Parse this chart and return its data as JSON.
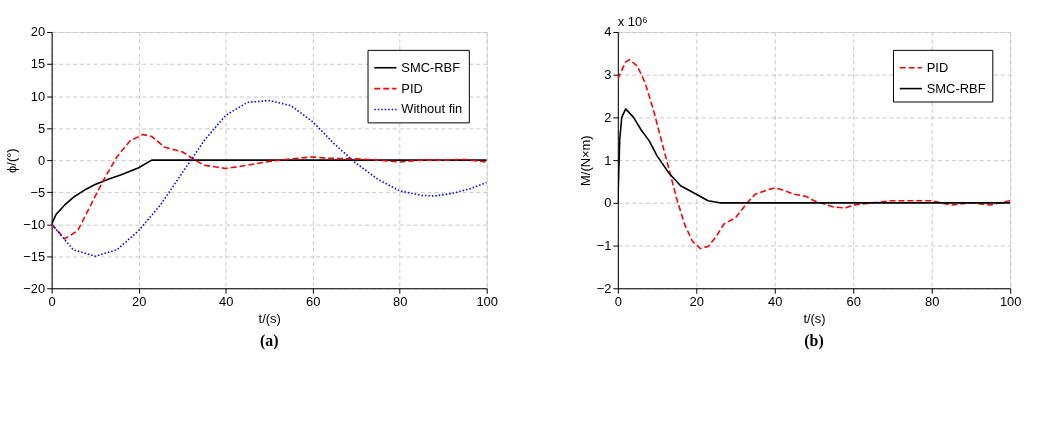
{
  "chart_data": [
    {
      "type": "line",
      "title": "(a)",
      "xlabel": "t/(s)",
      "ylabel": "ϕ/(°)",
      "xlim": [
        0,
        100
      ],
      "xticks": [
        0,
        20,
        40,
        60,
        80,
        100
      ],
      "ylim": [
        -20,
        20
      ],
      "yticks": [
        -20,
        -15,
        -10,
        -5,
        0,
        5,
        10,
        15,
        20
      ],
      "grid": true,
      "legend": "top right",
      "series": [
        {
          "name": "SMC-RBF",
          "color": "#000000",
          "line_style": "solid",
          "x": [
            0,
            1,
            3,
            5,
            8,
            10,
            13,
            16,
            20,
            23,
            100
          ],
          "values": [
            -10,
            -8.5,
            -7,
            -5.8,
            -4.5,
            -3.8,
            -3,
            -2.3,
            -1.2,
            0,
            0
          ]
        },
        {
          "name": "PID",
          "color": "#ff0000",
          "line_style": "dashed",
          "x": [
            0,
            3,
            6,
            9,
            12,
            15,
            18,
            21,
            23,
            26,
            30,
            33,
            35,
            40,
            45,
            50,
            55,
            60,
            63,
            70,
            75,
            80,
            85,
            90,
            95,
            100
          ],
          "values": [
            -10,
            -12.3,
            -11,
            -7,
            -3,
            0.5,
            3,
            4,
            3.7,
            2,
            1.3,
            0,
            -0.8,
            -1.3,
            -0.8,
            -0.2,
            0.2,
            0.5,
            0.3,
            0.2,
            0,
            -0.3,
            0,
            0,
            0.1,
            -0.3
          ]
        },
        {
          "name": "Without fin",
          "color": "#0000ff",
          "line_style": "dotted",
          "x": [
            0,
            5,
            10,
            15,
            20,
            25,
            30,
            35,
            40,
            45,
            50,
            55,
            60,
            65,
            70,
            75,
            80,
            85,
            88,
            92,
            96,
            100
          ],
          "values": [
            -10,
            -14,
            -15,
            -14,
            -11,
            -7,
            -2,
            3,
            7,
            9,
            9.3,
            8.5,
            6,
            2.5,
            -0.5,
            -3,
            -4.8,
            -5.5,
            -5.6,
            -5.2,
            -4.5,
            -3.5
          ]
        }
      ]
    },
    {
      "type": "line",
      "title": "(b)",
      "xlabel": "t/(s)",
      "ylabel": "M/(N×m)",
      "annotations": [
        "x 10⁶"
      ],
      "xlim": [
        0,
        100
      ],
      "xticks": [
        0,
        20,
        40,
        60,
        80,
        100
      ],
      "ylim": [
        -2,
        4
      ],
      "yticks": [
        -2,
        -1,
        0,
        1,
        2,
        3,
        4
      ],
      "grid": true,
      "legend": "top right",
      "series": [
        {
          "name": "PID",
          "color": "#ff0000",
          "line_style": "dashed",
          "x": [
            0,
            1,
            2,
            3,
            5,
            7,
            9,
            11,
            13,
            15,
            17,
            19,
            21,
            23,
            25,
            27,
            30,
            33,
            35,
            38,
            40,
            42,
            45,
            48,
            50,
            55,
            58,
            60,
            65,
            70,
            75,
            80,
            85,
            90,
            95,
            100
          ],
          "values": [
            2.9,
            3.1,
            3.3,
            3.35,
            3.2,
            2.8,
            2.2,
            1.5,
            0.8,
            0.1,
            -0.5,
            -0.9,
            -1.07,
            -1.02,
            -0.8,
            -0.5,
            -0.35,
            0,
            0.2,
            0.3,
            0.35,
            0.3,
            0.2,
            0.15,
            0.05,
            -0.1,
            -0.12,
            -0.05,
            0,
            0.05,
            0.05,
            0.05,
            -0.05,
            0,
            -0.05,
            0.05
          ]
        },
        {
          "name": "SMC-RBF",
          "color": "#000000",
          "line_style": "solid",
          "x": [
            0,
            0.5,
            1,
            2,
            4,
            6,
            8,
            10,
            13,
            16,
            20,
            23,
            26,
            30,
            100
          ],
          "values": [
            0,
            1.5,
            2.0,
            2.2,
            2,
            1.7,
            1.45,
            1.1,
            0.7,
            0.4,
            0.2,
            0.05,
            0,
            0,
            0
          ]
        }
      ]
    }
  ]
}
